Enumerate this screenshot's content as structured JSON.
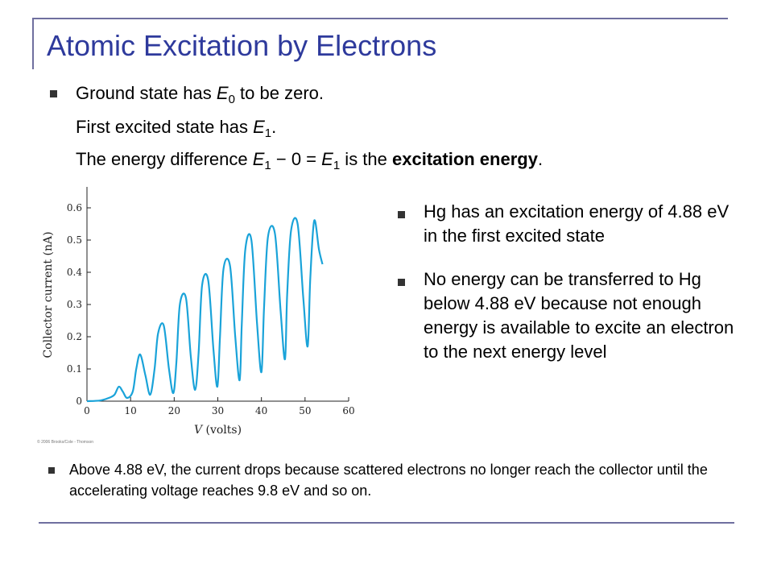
{
  "title": "Atomic Excitation by Electrons",
  "intro": {
    "line1": {
      "pre": "Ground state has ",
      "sym": "E",
      "sub": "0",
      "post": " to be zero."
    },
    "line2": {
      "pre": "First excited state has ",
      "sym": "E",
      "sub": "1",
      "post": "."
    },
    "line3": {
      "pre": "The energy difference ",
      "sym1": "E",
      "sub1": "1",
      "mid": " − 0 = ",
      "sym2": "E",
      "sub2": "1",
      "mid2": " is the ",
      "bold": "excitation energy",
      "post": "."
    }
  },
  "right_bullets": [
    "Hg has an excitation energy of 4.88 eV in the first excited state",
    "No energy can be transferred to Hg below 4.88 eV because not enough energy is available to excite an electron to the next energy level"
  ],
  "bottom_bullet": "Above 4.88 eV, the current drops because scattered electrons no longer reach the collector until the accelerating voltage reaches 9.8 eV and so on.",
  "copyright": "© 2006 Brooks/Cole - Thomson",
  "chart_data": {
    "type": "line",
    "xlabel": "V (volts)",
    "ylabel": "Collector current (nA)",
    "xlim": [
      0,
      60
    ],
    "ylim": [
      0,
      0.65
    ],
    "xticks": [
      "0",
      "10",
      "20",
      "30",
      "40",
      "50",
      "60"
    ],
    "yticks": [
      "0",
      "0.1",
      "0.2",
      "0.3",
      "0.4",
      "0.5",
      "0.6"
    ],
    "line_color": "#1aa3d9",
    "series": [
      {
        "x": [
          0,
          3,
          5,
          6.3,
          7.3,
          8.2,
          9.2,
          10.5,
          11.3,
          12.2,
          13.4,
          14.5,
          15.5,
          16.3,
          17.6,
          18.8,
          19.8,
          20.5,
          21.3,
          22.7,
          23.8,
          24.8,
          25.6,
          26.4,
          27.8,
          29,
          29.9,
          30.5,
          31.3,
          32.8,
          34,
          35,
          35.5,
          36.3,
          37.7,
          39,
          40,
          40.6,
          41.5,
          43.1,
          44.4,
          45.4,
          45.9,
          46.8,
          48.3,
          49.6,
          50.6,
          51.2,
          52.1,
          53.2,
          54
        ],
        "y": [
          0,
          0.002,
          0.01,
          0.02,
          0.045,
          0.03,
          0.01,
          0.03,
          0.1,
          0.145,
          0.08,
          0.02,
          0.1,
          0.21,
          0.235,
          0.1,
          0.025,
          0.12,
          0.3,
          0.32,
          0.14,
          0.035,
          0.15,
          0.36,
          0.375,
          0.16,
          0.045,
          0.2,
          0.41,
          0.42,
          0.2,
          0.065,
          0.24,
          0.47,
          0.5,
          0.24,
          0.09,
          0.29,
          0.51,
          0.52,
          0.28,
          0.13,
          0.33,
          0.53,
          0.55,
          0.32,
          0.17,
          0.38,
          0.56,
          0.47,
          0.425
        ]
      }
    ]
  }
}
